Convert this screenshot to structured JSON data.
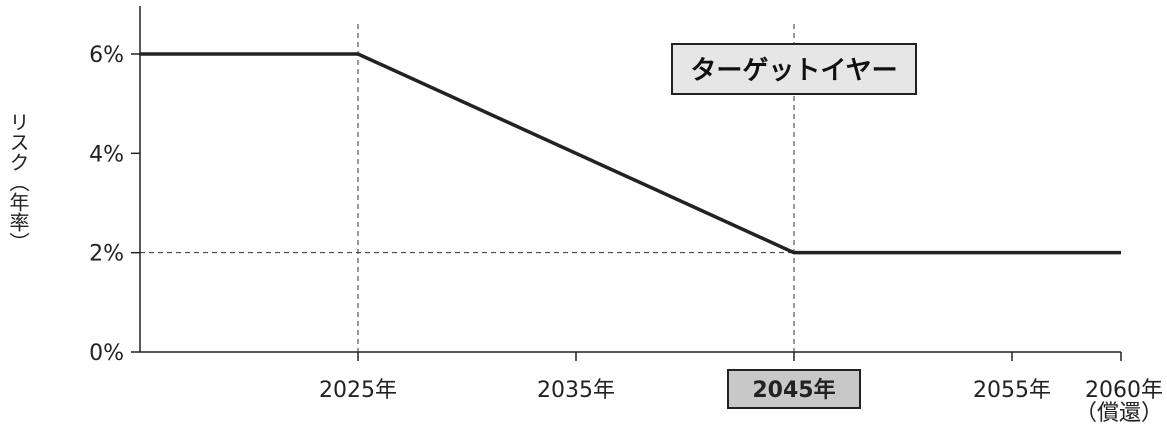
{
  "chart_data": {
    "type": "line",
    "xlim": [
      2015,
      2060
    ],
    "ylim": [
      0,
      6
    ],
    "y_ticks": [
      {
        "value": 0,
        "label": "0%"
      },
      {
        "value": 2,
        "label": "2%"
      },
      {
        "value": 4,
        "label": "4%"
      },
      {
        "value": 6,
        "label": "6%"
      }
    ],
    "x_ticks": [
      {
        "value": 2025,
        "label": "2025年"
      },
      {
        "value": 2035,
        "label": "2035年"
      },
      {
        "value": 2045,
        "label": "2045年",
        "highlight": true
      },
      {
        "value": 2055,
        "label": "2055年"
      },
      {
        "value": 2060,
        "label": "2060年",
        "sublabel": "（償還）"
      }
    ],
    "ylabel": "リスク（年率）",
    "series": [
      {
        "x": [
          2015,
          2025,
          2045,
          2060
        ],
        "y": [
          6,
          6,
          2,
          2
        ],
        "color": "#222222"
      }
    ],
    "reference_lines": {
      "vertical": [
        2025,
        2045
      ],
      "horizontal": [
        2
      ]
    },
    "annotation": {
      "text": "ターゲットイヤー",
      "x": 2045,
      "y": 6
    }
  },
  "colors": {
    "line": "#222222",
    "annotation_bg": "#e6e6e6",
    "highlight_bg": "#c8c8c8"
  }
}
